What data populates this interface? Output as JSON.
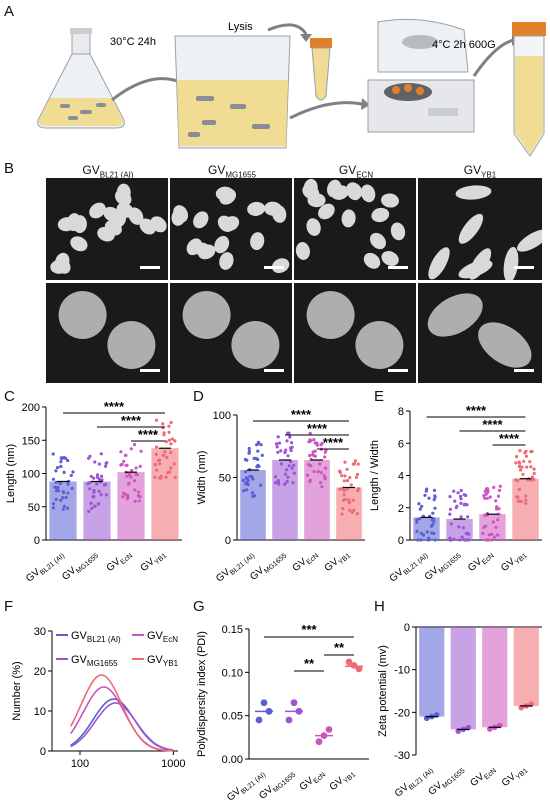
{
  "panels": [
    "A",
    "B",
    "C",
    "D",
    "E",
    "F",
    "G",
    "H"
  ],
  "panelA": {
    "step1_label": "30°C  24h",
    "step2_label": "Lysis",
    "step3_label": "4°C  2h  600G"
  },
  "panelB": {
    "columns": [
      {
        "main": "GV",
        "sub": "BL21 (AI)"
      },
      {
        "main": "GV",
        "sub": "MG1655"
      },
      {
        "main": "GV",
        "sub": "ECN"
      },
      {
        "main": "GV",
        "sub": "YB1"
      }
    ]
  },
  "groups": [
    {
      "main": "GV",
      "sub": "BL21 (AI)",
      "color": "#5a5fd3"
    },
    {
      "main": "GV",
      "sub": "MG1655",
      "color": "#9b55d2"
    },
    {
      "main": "GV",
      "sub": "EcN",
      "color": "#cc55c0"
    },
    {
      "main": "GV",
      "sub": "YB1",
      "color": "#ee6b74"
    }
  ],
  "chart_data": [
    {
      "panel": "C",
      "type": "bar",
      "ylabel": "Length (nm)",
      "ylim": [
        0,
        200
      ],
      "yticks": [
        0,
        50,
        100,
        150,
        200
      ],
      "values": [
        88,
        88,
        102,
        138
      ],
      "sig": [
        "****",
        "****",
        "****"
      ]
    },
    {
      "panel": "D",
      "type": "bar",
      "ylabel": "Width (nm)",
      "ylim": [
        0,
        100
      ],
      "yticks": [
        0,
        50,
        100
      ],
      "values": [
        56,
        64,
        64,
        42
      ],
      "sig": [
        "****",
        "****",
        "****"
      ]
    },
    {
      "panel": "E",
      "type": "bar",
      "ylabel": "Length / Width",
      "ylim": [
        0,
        8
      ],
      "yticks": [
        0,
        2,
        4,
        6,
        8
      ],
      "values": [
        1.4,
        1.3,
        1.6,
        3.8
      ],
      "sig": [
        "****",
        "****",
        "****"
      ]
    },
    {
      "panel": "F",
      "type": "line",
      "ylabel": "Number (%)",
      "xscale": "log",
      "xticks": [
        "100",
        "1000"
      ],
      "ylim": [
        0,
        30
      ],
      "yticks": [
        0,
        10,
        20,
        30
      ],
      "series": [
        {
          "name": "BL21 (AI)",
          "peak_x": 230,
          "peak_y": 13
        },
        {
          "name": "MG1655",
          "peak_x": 240,
          "peak_y": 12
        },
        {
          "name": "EcN",
          "peak_x": 180,
          "peak_y": 16
        },
        {
          "name": "YB1",
          "peak_x": 170,
          "peak_y": 19
        }
      ]
    },
    {
      "panel": "G",
      "type": "scatter",
      "ylabel": "Polydispersity index (PDI)",
      "ylim": [
        0,
        0.15
      ],
      "yticks": [
        "0.00",
        "0.05",
        "0.10",
        "0.15"
      ],
      "means": [
        0.055,
        0.055,
        0.027,
        0.107
      ],
      "points": [
        [
          0.045,
          0.065,
          0.055
        ],
        [
          0.045,
          0.065,
          0.055
        ],
        [
          0.02,
          0.027,
          0.034
        ],
        [
          0.112,
          0.108,
          0.104
        ]
      ],
      "sig": [
        "***",
        "**",
        "**"
      ]
    },
    {
      "panel": "H",
      "type": "bar",
      "ylabel": "Zeta potential (mv)",
      "ylim": [
        -30,
        0
      ],
      "yticks": [
        0,
        -10,
        -20,
        -30
      ],
      "values": [
        -21,
        -24,
        -23.5,
        -18.5
      ]
    }
  ]
}
